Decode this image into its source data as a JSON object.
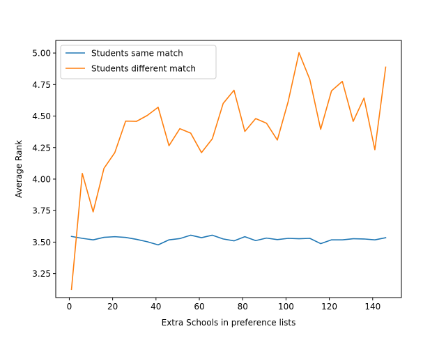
{
  "chart_data": {
    "type": "line",
    "title": "",
    "xlabel": "Extra Schools in preference lists",
    "ylabel": "Average Rank",
    "xlim": [
      -6.25,
      153.25
    ],
    "ylim": [
      3.06,
      5.1
    ],
    "x_ticks": [
      0,
      20,
      40,
      60,
      80,
      100,
      120,
      140
    ],
    "y_ticks": [
      3.25,
      3.5,
      3.75,
      4.0,
      4.25,
      4.5,
      4.75,
      5.0
    ],
    "x_tick_labels": [
      "0",
      "20",
      "40",
      "60",
      "80",
      "100",
      "120",
      "140"
    ],
    "y_tick_labels": [
      "3.25",
      "3.50",
      "3.75",
      "4.00",
      "4.25",
      "4.50",
      "4.75",
      "5.00"
    ],
    "grid": false,
    "legend_position": "upper left",
    "x": [
      1,
      6,
      11,
      16,
      21,
      26,
      31,
      36,
      41,
      46,
      51,
      56,
      61,
      66,
      71,
      76,
      81,
      86,
      91,
      96,
      101,
      106,
      111,
      116,
      121,
      126,
      131,
      136,
      141,
      146
    ],
    "series": [
      {
        "name": "Students same match",
        "color": "#1f77b4",
        "values": [
          3.545,
          3.53,
          3.518,
          3.538,
          3.543,
          3.537,
          3.522,
          3.503,
          3.478,
          3.518,
          3.528,
          3.555,
          3.535,
          3.555,
          3.525,
          3.51,
          3.543,
          3.512,
          3.532,
          3.52,
          3.53,
          3.527,
          3.53,
          3.488,
          3.518,
          3.518,
          3.527,
          3.525,
          3.518,
          3.535
        ]
      },
      {
        "name": "Students different match",
        "color": "#ff7f0e",
        "values": [
          3.125,
          4.045,
          3.74,
          4.085,
          4.21,
          4.46,
          4.458,
          4.505,
          4.57,
          4.265,
          4.4,
          4.365,
          4.21,
          4.32,
          4.6,
          4.705,
          4.378,
          4.48,
          4.443,
          4.31,
          4.615,
          5.003,
          4.79,
          4.395,
          4.7,
          4.775,
          4.458,
          4.643,
          4.233,
          4.888
        ]
      }
    ]
  }
}
